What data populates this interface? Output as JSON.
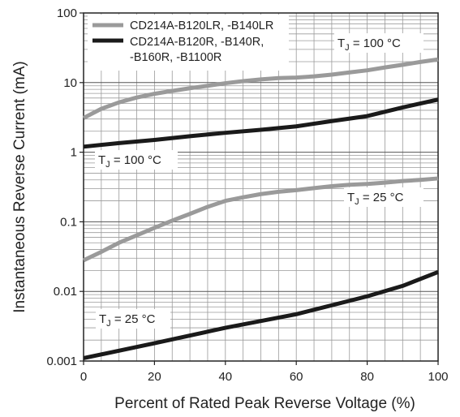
{
  "chart_data": {
    "type": "line",
    "xlabel": "Percent of Rated Peak Reverse Voltage (%)",
    "ylabel": "Instantaneous Reverse Current (mA)",
    "xlim": [
      0,
      100
    ],
    "ylim": [
      0.001,
      100
    ],
    "yscale": "log",
    "grid": true,
    "x_ticks": [
      "0",
      "20",
      "40",
      "60",
      "80",
      "100"
    ],
    "y_ticks": [
      "0.001",
      "0.01",
      "0.1",
      "1",
      "10",
      "100"
    ],
    "legend": {
      "placement": "top-left",
      "entries": [
        {
          "label": "CD214A-B120LR, -B140LR",
          "color": "#9a9a9a"
        },
        {
          "label_lines": [
            "CD214A-B120R, -B140R,",
            "-B160R, -B1100R"
          ],
          "color": "#1a1a1a"
        }
      ]
    },
    "series": [
      {
        "legend_index": 0,
        "color": "#9a9a9a",
        "annotation": {
          "T": "T",
          "sub": "J",
          "rest": " = 100 °C"
        },
        "x": [
          0,
          5,
          10,
          15,
          20,
          25,
          30,
          35,
          40,
          45,
          50,
          55,
          60,
          65,
          70,
          75,
          80,
          85,
          90,
          95,
          100
        ],
        "y": [
          3.1,
          4.2,
          5.2,
          6.1,
          6.9,
          7.6,
          8.3,
          9.0,
          9.8,
          10.5,
          11.1,
          11.6,
          11.8,
          12.3,
          13.0,
          14.0,
          15.0,
          16.5,
          18.0,
          19.8,
          21.5
        ]
      },
      {
        "legend_index": 1,
        "color": "#1a1a1a",
        "annotation": {
          "T": "T",
          "sub": "J",
          "rest": " = 100 °C"
        },
        "x": [
          0,
          10,
          20,
          30,
          40,
          50,
          60,
          70,
          80,
          90,
          100
        ],
        "y": [
          1.2,
          1.35,
          1.5,
          1.7,
          1.9,
          2.1,
          2.35,
          2.8,
          3.3,
          4.4,
          5.7
        ]
      },
      {
        "legend_index": 0,
        "color": "#9a9a9a",
        "annotation": {
          "T": "T",
          "sub": "J",
          "rest": " = 25 °C"
        },
        "x": [
          0,
          5,
          10,
          15,
          20,
          25,
          30,
          35,
          40,
          45,
          50,
          55,
          60,
          65,
          70,
          75,
          80,
          85,
          90,
          95,
          100
        ],
        "y": [
          0.028,
          0.037,
          0.05,
          0.064,
          0.082,
          0.104,
          0.13,
          0.164,
          0.2,
          0.225,
          0.25,
          0.27,
          0.285,
          0.305,
          0.325,
          0.34,
          0.35,
          0.365,
          0.385,
          0.4,
          0.42
        ]
      },
      {
        "legend_index": 1,
        "color": "#1a1a1a",
        "annotation": {
          "T": "T",
          "sub": "J",
          "rest": " = 25 °C"
        },
        "x": [
          0,
          20,
          40,
          60,
          80,
          90,
          100
        ],
        "y": [
          0.0011,
          0.0018,
          0.003,
          0.0047,
          0.0085,
          0.012,
          0.019
        ]
      }
    ]
  }
}
